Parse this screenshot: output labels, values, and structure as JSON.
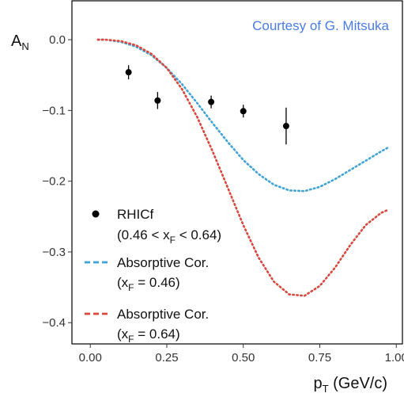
{
  "chart_data": {
    "type": "scatter",
    "xlabel": {
      "main": "p",
      "sub": "T",
      "rest": " (GeV/c)"
    },
    "ylabel": {
      "main": "A",
      "sub": "N"
    },
    "xlim": [
      -0.06,
      1.02
    ],
    "ylim": [
      -0.43,
      0.055
    ],
    "xticks": [
      0.0,
      0.25,
      0.5,
      0.75,
      1.0
    ],
    "xtick_labels": [
      "0.00",
      "0.25",
      "0.50",
      "0.75",
      "1.00"
    ],
    "yticks": [
      0.0,
      -0.1,
      -0.2,
      -0.3,
      -0.4
    ],
    "ytick_labels": [
      "0.0",
      "−0.1",
      "−0.2",
      "−0.3",
      "−0.4"
    ],
    "annotation": "Courtesy of G. Mitsuka",
    "grid": false,
    "legend_position": "bottom-left",
    "colors": {
      "data": "#000000",
      "cor_046": "#3fa3d8",
      "cor_064": "#d9473d",
      "credit": "#4a7be8"
    },
    "series": [
      {
        "name": "RHICf",
        "kind": "points",
        "x": [
          0.125,
          0.22,
          0.395,
          0.5,
          0.64
        ],
        "y": [
          -0.046,
          -0.086,
          -0.088,
          -0.101,
          -0.122
        ],
        "yerr": [
          0.01,
          0.012,
          0.009,
          0.009,
          0.026
        ]
      },
      {
        "name": "Absorptive Cor.",
        "kind": "curve",
        "x": [
          0.025,
          0.05,
          0.1,
          0.15,
          0.2,
          0.25,
          0.3,
          0.35,
          0.4,
          0.45,
          0.5,
          0.55,
          0.6,
          0.65,
          0.7,
          0.75,
          0.8,
          0.85,
          0.9,
          0.95,
          0.975
        ],
        "y": [
          0.0,
          0.0,
          -0.003,
          -0.01,
          -0.022,
          -0.04,
          -0.063,
          -0.09,
          -0.118,
          -0.145,
          -0.17,
          -0.19,
          -0.205,
          -0.213,
          -0.214,
          -0.208,
          -0.197,
          -0.184,
          -0.171,
          -0.158,
          -0.152
        ]
      },
      {
        "name": "Absorptive Cor.",
        "kind": "curve",
        "x": [
          0.025,
          0.05,
          0.1,
          0.15,
          0.2,
          0.25,
          0.3,
          0.35,
          0.4,
          0.45,
          0.5,
          0.55,
          0.6,
          0.65,
          0.7,
          0.75,
          0.8,
          0.85,
          0.9,
          0.95,
          0.975
        ],
        "y": [
          0.0,
          0.0,
          -0.002,
          -0.008,
          -0.02,
          -0.04,
          -0.07,
          -0.11,
          -0.158,
          -0.21,
          -0.262,
          -0.308,
          -0.342,
          -0.36,
          -0.362,
          -0.348,
          -0.322,
          -0.29,
          -0.262,
          -0.245,
          -0.24
        ]
      }
    ],
    "legend": [
      {
        "label": "RHICf",
        "sub_pre": "(0.46 < x",
        "sub_idx": "F",
        "sub_post": " < 0.64)"
      },
      {
        "label": "Absorptive Cor.",
        "sub_pre": "(x",
        "sub_idx": "F",
        "sub_post": " = 0.46)"
      },
      {
        "label": "Absorptive Cor.",
        "sub_pre": "(x",
        "sub_idx": "F",
        "sub_post": " = 0.64)"
      }
    ]
  }
}
